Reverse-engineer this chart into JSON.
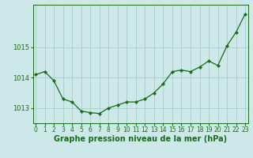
{
  "x": [
    0,
    1,
    2,
    3,
    4,
    5,
    6,
    7,
    8,
    9,
    10,
    11,
    12,
    13,
    14,
    15,
    16,
    17,
    18,
    19,
    20,
    21,
    22,
    23
  ],
  "y": [
    1014.1,
    1014.2,
    1013.9,
    1013.3,
    1013.2,
    1012.9,
    1012.85,
    1012.82,
    1013.0,
    1013.1,
    1013.2,
    1013.2,
    1013.3,
    1013.5,
    1013.8,
    1014.2,
    1014.25,
    1014.2,
    1014.35,
    1014.55,
    1014.4,
    1015.05,
    1015.5,
    1016.1
  ],
  "ylim": [
    1012.5,
    1016.4
  ],
  "yticks": [
    1013,
    1014,
    1015
  ],
  "xlabel": "Graphe pression niveau de la mer (hPa)",
  "line_color": "#1a6b1a",
  "marker_color": "#1a6b1a",
  "bg_color": "#cce8e8",
  "grid_color": "#aacccc",
  "tick_color": "#1a6b1a",
  "label_color": "#1a6b1a",
  "xlabel_fontsize": 7,
  "tick_fontsize": 6,
  "linewidth": 0.9,
  "markersize": 2.2
}
